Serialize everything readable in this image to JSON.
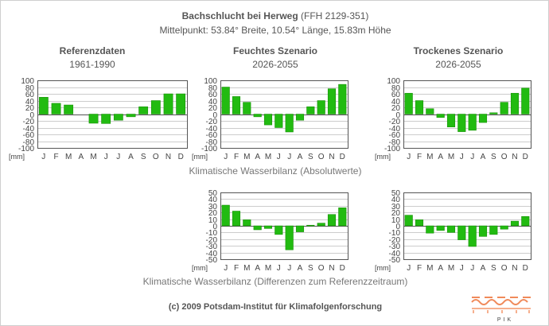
{
  "header": {
    "title_bold": "Bachschlucht bei Herweg",
    "title_code": "(FFH 2129-351)",
    "subtitle": "Mittelpunkt: 53.84° Breite, 10.54° Länge, 15.83m Höhe"
  },
  "panels": [
    {
      "title": "Referenzdaten",
      "period": "1961-1990"
    },
    {
      "title": "Feuchtes Szenario",
      "period": "2026-2055"
    },
    {
      "title": "Trockenes Szenario",
      "period": "2026-2055"
    }
  ],
  "labels": {
    "absolute": "Klimatische Wasserbilanz (Absolutwerte)",
    "difference": "Klimatische Wasserbilanz (Differenzen zum Referenzzeitraum)",
    "unit": "[mm]"
  },
  "footer": {
    "copyright": "(c) 2009 Potsdam-Institut für Klimafolgenforschung",
    "logo_text": "PIK"
  },
  "colors": {
    "bar": "#22bb11",
    "bar_edge": "#118800",
    "grid": "#cccccc",
    "axis": "#555555"
  },
  "chart_data": [
    {
      "type": "bar",
      "id": "ref-abs",
      "categories": [
        "J",
        "F",
        "M",
        "A",
        "M",
        "J",
        "J",
        "A",
        "S",
        "O",
        "N",
        "D"
      ],
      "values": [
        50,
        32,
        27,
        0,
        -27,
        -28,
        -18,
        -8,
        22,
        40,
        60,
        60
      ],
      "ylim": [
        -100,
        100
      ],
      "yticks": [
        100,
        80,
        60,
        40,
        20,
        0,
        -20,
        -40,
        -60,
        -80,
        -100
      ],
      "unit": "[mm]"
    },
    {
      "type": "bar",
      "id": "wet-abs",
      "categories": [
        "J",
        "F",
        "M",
        "A",
        "M",
        "J",
        "J",
        "A",
        "S",
        "O",
        "N",
        "D"
      ],
      "values": [
        80,
        52,
        35,
        -8,
        -32,
        -40,
        -53,
        -18,
        22,
        40,
        75,
        88
      ],
      "ylim": [
        -100,
        100
      ],
      "yticks": [
        100,
        80,
        60,
        40,
        20,
        0,
        -20,
        -40,
        -60,
        -80,
        -100
      ],
      "unit": "[mm]"
    },
    {
      "type": "bar",
      "id": "dry-abs",
      "categories": [
        "J",
        "F",
        "M",
        "A",
        "M",
        "J",
        "J",
        "A",
        "S",
        "O",
        "N",
        "D"
      ],
      "values": [
        62,
        40,
        16,
        -10,
        -38,
        -52,
        -48,
        -25,
        4,
        35,
        62,
        77
      ],
      "ylim": [
        -100,
        100
      ],
      "yticks": [
        100,
        80,
        60,
        40,
        20,
        0,
        -20,
        -40,
        -60,
        -80,
        -100
      ],
      "unit": "[mm]"
    },
    {
      "type": "bar",
      "id": "wet-diff",
      "categories": [
        "J",
        "F",
        "M",
        "A",
        "M",
        "J",
        "J",
        "A",
        "S",
        "O",
        "N",
        "D"
      ],
      "values": [
        31,
        22,
        9,
        -6,
        -4,
        -13,
        -36,
        -9,
        1,
        4,
        17,
        27
      ],
      "ylim": [
        -50,
        50
      ],
      "yticks": [
        50,
        40,
        30,
        20,
        10,
        0,
        -10,
        -20,
        -30,
        -40,
        -50
      ],
      "unit": "[mm]"
    },
    {
      "type": "bar",
      "id": "dry-diff",
      "categories": [
        "J",
        "F",
        "M",
        "A",
        "M",
        "J",
        "J",
        "A",
        "S",
        "O",
        "N",
        "D"
      ],
      "values": [
        16,
        9,
        -11,
        -7,
        -10,
        -21,
        -31,
        -16,
        -13,
        -5,
        7,
        14
      ],
      "ylim": [
        -50,
        50
      ],
      "yticks": [
        50,
        40,
        30,
        20,
        10,
        0,
        -10,
        -20,
        -30,
        -40,
        -50
      ],
      "unit": "[mm]"
    }
  ]
}
